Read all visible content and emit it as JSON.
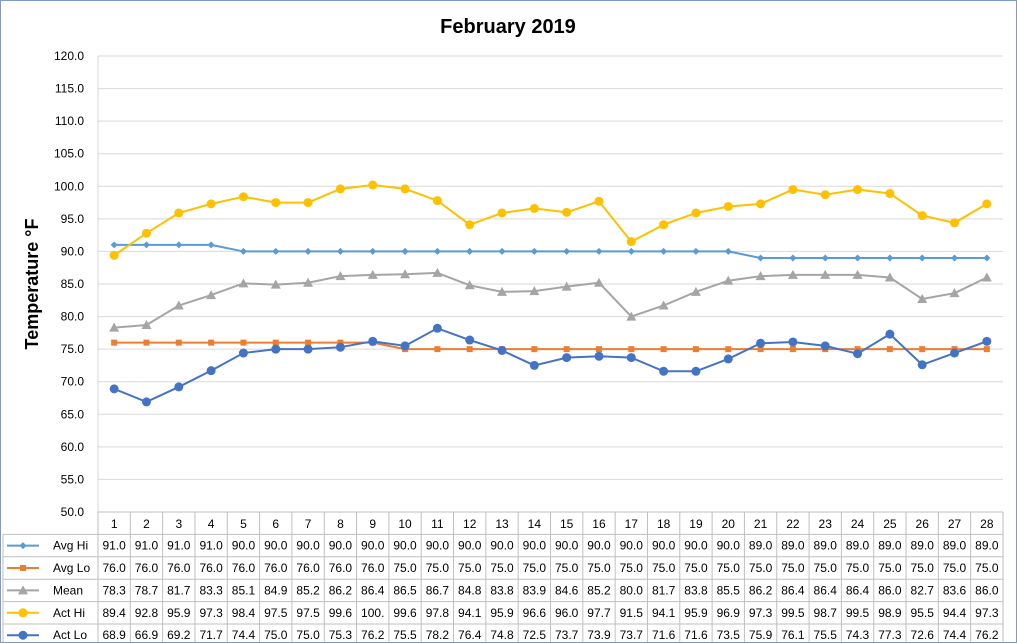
{
  "chart_data": {
    "type": "line",
    "title": "February 2019",
    "ylabel": "Temperature °F",
    "xlabel": "",
    "ylim": [
      50,
      120
    ],
    "ytick_step": 5,
    "grid": true,
    "legend": "data-table-below",
    "categories": [
      "1",
      "2",
      "3",
      "4",
      "5",
      "6",
      "7",
      "8",
      "9",
      "10",
      "11",
      "12",
      "13",
      "14",
      "15",
      "16",
      "17",
      "18",
      "19",
      "20",
      "21",
      "22",
      "23",
      "24",
      "25",
      "26",
      "27",
      "28"
    ],
    "series": [
      {
        "name": "Avg Hi",
        "color": "#5b9bd5",
        "marker": "diamond",
        "values": [
          91.0,
          91.0,
          91.0,
          91.0,
          90.0,
          90.0,
          90.0,
          90.0,
          90.0,
          90.0,
          90.0,
          90.0,
          90.0,
          90.0,
          90.0,
          90.0,
          90.0,
          90.0,
          90.0,
          90.0,
          89.0,
          89.0,
          89.0,
          89.0,
          89.0,
          89.0,
          89.0,
          89.0
        ],
        "labels": [
          "91.0",
          "91.0",
          "91.0",
          "91.0",
          "90.0",
          "90.0",
          "90.0",
          "90.0",
          "90.0",
          "90.0",
          "90.0",
          "90.0",
          "90.0",
          "90.0",
          "90.0",
          "90.0",
          "90.0",
          "90.0",
          "90.0",
          "90.0",
          "89.0",
          "89.0",
          "89.0",
          "89.0",
          "89.0",
          "89.0",
          "89.0",
          "89.0"
        ]
      },
      {
        "name": "Avg Lo",
        "color": "#ed7d31",
        "marker": "square",
        "values": [
          76.0,
          76.0,
          76.0,
          76.0,
          76.0,
          76.0,
          76.0,
          76.0,
          76.0,
          75.0,
          75.0,
          75.0,
          75.0,
          75.0,
          75.0,
          75.0,
          75.0,
          75.0,
          75.0,
          75.0,
          75.0,
          75.0,
          75.0,
          75.0,
          75.0,
          75.0,
          75.0,
          75.0
        ],
        "labels": [
          "76.0",
          "76.0",
          "76.0",
          "76.0",
          "76.0",
          "76.0",
          "76.0",
          "76.0",
          "76.0",
          "75.0",
          "75.0",
          "75.0",
          "75.0",
          "75.0",
          "75.0",
          "75.0",
          "75.0",
          "75.0",
          "75.0",
          "75.0",
          "75.0",
          "75.0",
          "75.0",
          "75.0",
          "75.0",
          "75.0",
          "75.0",
          "75.0"
        ]
      },
      {
        "name": "Mean",
        "color": "#a5a5a5",
        "marker": "triangle",
        "values": [
          78.3,
          78.7,
          81.7,
          83.3,
          85.1,
          84.9,
          85.2,
          86.2,
          86.4,
          86.5,
          86.7,
          84.8,
          83.8,
          83.9,
          84.6,
          85.2,
          80.0,
          81.7,
          83.8,
          85.5,
          86.2,
          86.4,
          86.4,
          86.4,
          86.0,
          82.7,
          83.6,
          86.0
        ],
        "labels": [
          "78.3",
          "78.7",
          "81.7",
          "83.3",
          "85.1",
          "84.9",
          "85.2",
          "86.2",
          "86.4",
          "86.5",
          "86.7",
          "84.8",
          "83.8",
          "83.9",
          "84.6",
          "85.2",
          "80.0",
          "81.7",
          "83.8",
          "85.5",
          "86.2",
          "86.4",
          "86.4",
          "86.4",
          "86.0",
          "82.7",
          "83.6",
          "86.0"
        ]
      },
      {
        "name": "Act Hi",
        "color": "#ffc000",
        "marker": "circle",
        "values": [
          89.4,
          92.8,
          95.9,
          97.3,
          98.4,
          97.5,
          97.5,
          99.6,
          100.2,
          99.6,
          97.8,
          94.1,
          95.9,
          96.6,
          96.0,
          97.7,
          91.5,
          94.1,
          95.9,
          96.9,
          97.3,
          99.5,
          98.7,
          99.5,
          98.9,
          95.5,
          94.4,
          97.3
        ],
        "labels": [
          "89.4",
          "92.8",
          "95.9",
          "97.3",
          "98.4",
          "97.5",
          "97.5",
          "99.6",
          "100.",
          "99.6",
          "97.8",
          "94.1",
          "95.9",
          "96.6",
          "96.0",
          "97.7",
          "91.5",
          "94.1",
          "95.9",
          "96.9",
          "97.3",
          "99.5",
          "98.7",
          "99.5",
          "98.9",
          "95.5",
          "94.4",
          "97.3"
        ]
      },
      {
        "name": "Act Lo",
        "color": "#4472c4",
        "marker": "circle",
        "values": [
          68.9,
          66.9,
          69.2,
          71.7,
          74.4,
          75.0,
          75.0,
          75.3,
          76.2,
          75.5,
          78.2,
          76.4,
          74.8,
          72.5,
          73.7,
          73.9,
          73.7,
          71.6,
          71.6,
          73.5,
          75.9,
          76.1,
          75.5,
          74.3,
          77.3,
          72.6,
          74.4,
          76.2
        ],
        "labels": [
          "68.9",
          "66.9",
          "69.2",
          "71.7",
          "74.4",
          "75.0",
          "75.0",
          "75.3",
          "76.2",
          "75.5",
          "78.2",
          "76.4",
          "74.8",
          "72.5",
          "73.7",
          "73.9",
          "73.7",
          "71.6",
          "71.6",
          "73.5",
          "75.9",
          "76.1",
          "75.5",
          "74.3",
          "77.3",
          "72.6",
          "74.4",
          "76.2"
        ]
      }
    ]
  }
}
